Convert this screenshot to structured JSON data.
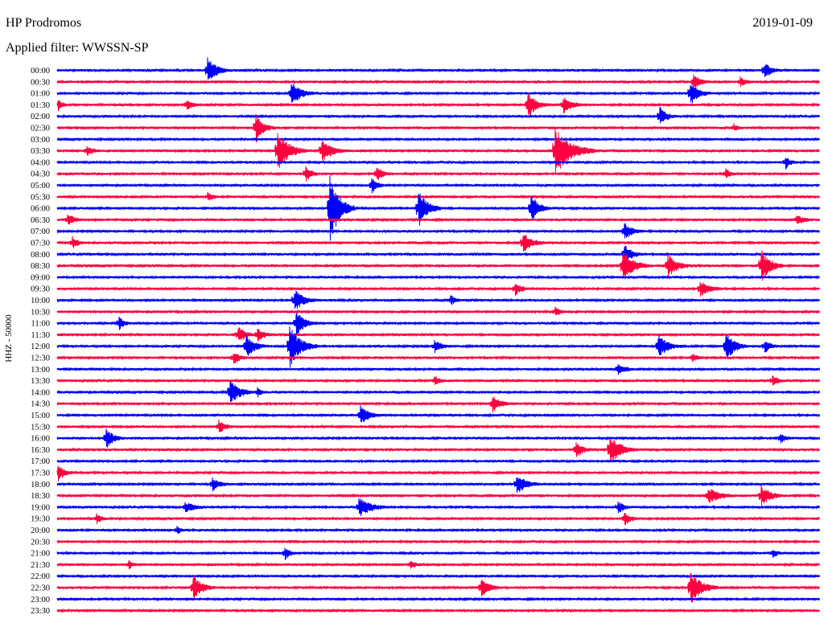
{
  "header": {
    "station": "HP Prodromos",
    "date": "2019-01-09",
    "filter": "Applied filter: WWSSN-SP"
  },
  "chart_data": {
    "type": "line",
    "title": "HP Prodromos",
    "subtitle": "Applied filter: WWSSN-SP",
    "ylabel": "HHZ - 50000",
    "xlabel": "",
    "y_ticks": [
      "00:00",
      "00:30",
      "01:00",
      "01:30",
      "02:00",
      "02:30",
      "03:00",
      "03:30",
      "04:00",
      "04:30",
      "05:00",
      "05:30",
      "06:00",
      "06:30",
      "07:00",
      "07:30",
      "08:00",
      "08:30",
      "09:00",
      "09:30",
      "10:00",
      "10:30",
      "11:00",
      "11:30",
      "12:00",
      "12:30",
      "13:00",
      "13:30",
      "14:00",
      "14:30",
      "15:00",
      "15:30",
      "16:00",
      "16:30",
      "17:00",
      "17:30",
      "18:00",
      "18:30",
      "19:00",
      "19:30",
      "20:00",
      "20:30",
      "21:00",
      "21:30",
      "22:00",
      "22:30",
      "23:00",
      "23:30"
    ],
    "trace_colors": [
      "#0000ff",
      "#ff0040"
    ],
    "grid": false,
    "legend": "none"
  },
  "icons": {
    "trace": "seismogram-trace"
  }
}
